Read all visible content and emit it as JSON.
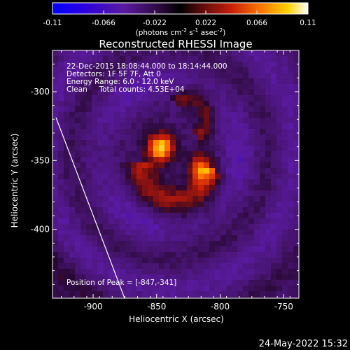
{
  "colorbar": {
    "ticks": [
      "-0.11",
      "-0.066",
      "-0.022",
      "0.022",
      "0.066",
      "0.11"
    ],
    "tick_values": [
      -0.11,
      -0.066,
      -0.022,
      0.022,
      0.066,
      0.11
    ],
    "units_text": "(photons cm",
    "units_sup1": "-2",
    "units_mid": " s",
    "units_sup2": "-1",
    "units_tail": " asec",
    "units_sup3": "-2",
    "units_close": ")",
    "colors": [
      "#0000ff",
      "#3a00c8",
      "#5c1a9c",
      "#3d0a4a",
      "#000000",
      "#6a1010",
      "#c81a0a",
      "#ff6a00",
      "#ffc400",
      "#ffff80",
      "#ffffff"
    ]
  },
  "chart_data": {
    "type": "heatmap",
    "title": "Reconstructed RHESSI Image",
    "xlabel": "Heliocentric X (arcsec)",
    "ylabel": "Heliocentric Y (arcsec)",
    "xlim": [
      -932,
      -738
    ],
    "ylim": [
      -450,
      -270
    ],
    "xticks": [
      -900,
      -850,
      -800,
      -750
    ],
    "xtick_labels": [
      "-900",
      "-850",
      "-800",
      "-750"
    ],
    "yticks": [
      -300,
      -350,
      -400
    ],
    "ytick_labels": [
      "-300",
      "-350",
      "-400"
    ],
    "info_lines": [
      "22-Dec-2015 18:08:44.000 to 18:14:44.000",
      "Detectors: 1F 5F 7F, Att 0",
      "Energy Range: 6.0 - 12.0 keV",
      "Clean     Total counts: 4.53E+04"
    ],
    "peak_label": "Position of Peak = [-847,-341]",
    "peak_position": [
      -847,
      -341
    ],
    "secondary_peak": [
      -815,
      -355
    ],
    "value_range": [
      -0.11,
      0.11
    ]
  },
  "footer": {
    "timestamp": "24-May-2022 15:32"
  }
}
